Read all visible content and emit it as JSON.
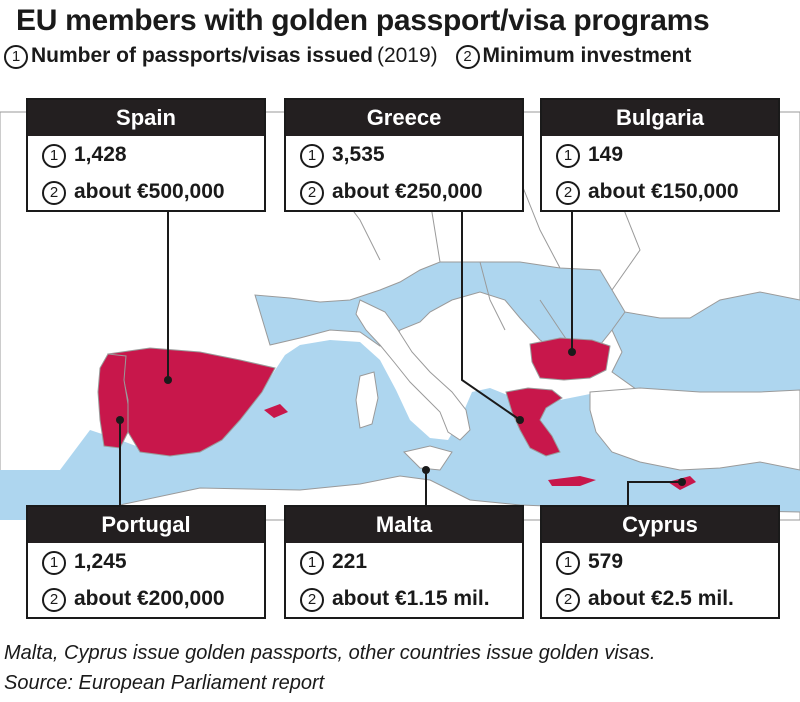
{
  "title": "EU members with golden passport/visa programs",
  "legend": {
    "item1_marker": "1",
    "item1_label": "Number of passports/visas issued",
    "item1_note": "(2019)",
    "item2_marker": "2",
    "item2_label": "Minimum investment"
  },
  "colors": {
    "sea": "#aed6ef",
    "land": "#ffffff",
    "highlight": "#c8174b",
    "card_header": "#231f20"
  },
  "countries": [
    {
      "name": "Spain",
      "issued": "1,428",
      "min_investment": "about €500,000"
    },
    {
      "name": "Greece",
      "issued": "3,535",
      "min_investment": "about €250,000"
    },
    {
      "name": "Bulgaria",
      "issued": "149",
      "min_investment": "about €150,000"
    },
    {
      "name": "Portugal",
      "issued": "1,245",
      "min_investment": "about €200,000"
    },
    {
      "name": "Malta",
      "issued": "221",
      "min_investment": "about €1.15 mil."
    },
    {
      "name": "Cyprus",
      "issued": "579",
      "min_investment": "about €2.5 mil."
    }
  ],
  "footnote": "Malta, Cyprus issue golden passports, other countries issue golden visas.",
  "source": "Source: European Parliament report"
}
